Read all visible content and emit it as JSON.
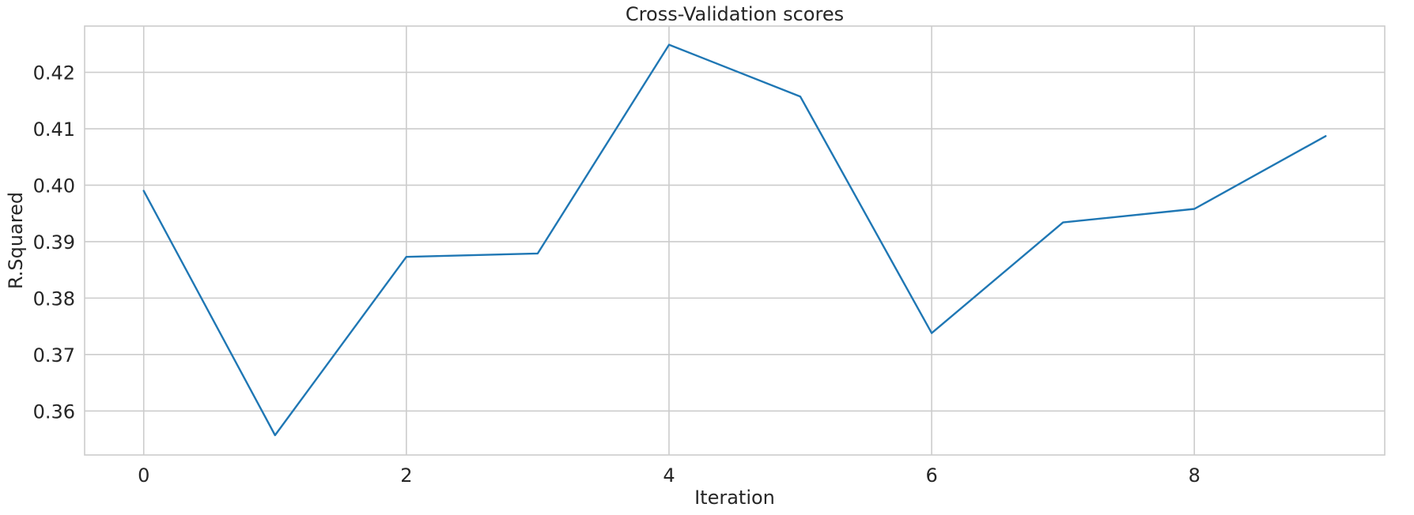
{
  "chart_data": {
    "type": "line",
    "title": "Cross-Validation scores",
    "xlabel": "Iteration",
    "ylabel": "R.Squared",
    "x": [
      0,
      1,
      2,
      3,
      4,
      5,
      6,
      7,
      8,
      9
    ],
    "series": [
      {
        "values": [
          0.399,
          0.3557,
          0.3873,
          0.3879,
          0.4249,
          0.4157,
          0.3738,
          0.3934,
          0.3958,
          0.4087
        ],
        "color": "#1f77b4"
      }
    ],
    "xlim": [
      -0.45,
      9.45
    ],
    "ylim": [
      0.3522,
      0.4282
    ],
    "xticks": [
      0,
      2,
      4,
      6,
      8
    ],
    "xtick_labels": [
      "0",
      "2",
      "4",
      "6",
      "8"
    ],
    "yticks": [
      0.36,
      0.37,
      0.38,
      0.39,
      0.4,
      0.41,
      0.42
    ],
    "ytick_labels": [
      "0.36",
      "0.37",
      "0.38",
      "0.39",
      "0.40",
      "0.41",
      "0.42"
    ],
    "grid": true,
    "legend": "none"
  }
}
